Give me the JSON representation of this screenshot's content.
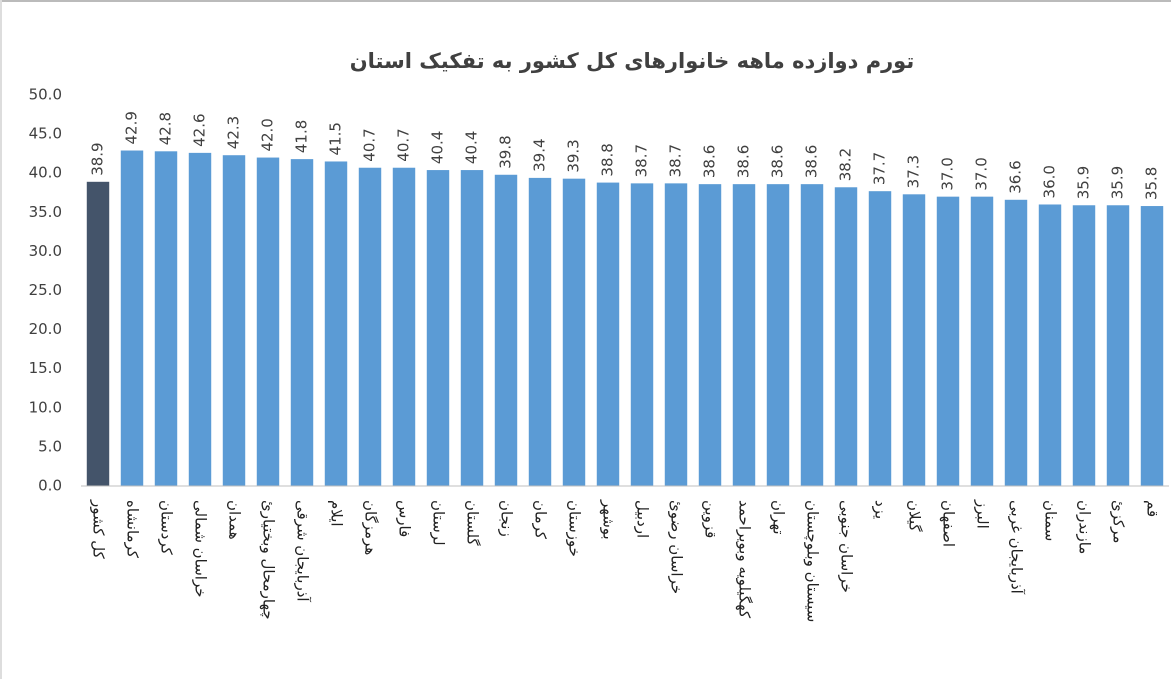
{
  "chart_data": {
    "type": "bar",
    "title": "تورم دوازده ماهه خانوارهای کل کشور به تفکیک استان",
    "categories": [
      "کل کشور",
      "کرمانشاه",
      "کردستان",
      "خراسان شمالی",
      "همدان",
      "چهارمحال وبختیاریٔ",
      "آذربایجان شرقی",
      "ایلام",
      "هرمزگان",
      "فارس",
      "لرستان",
      "گلستان",
      "زنجان",
      "کرمان",
      "خوزستان",
      "بوشهر",
      "اردبیل",
      "خراسان رضویٔ",
      "قزوین",
      "کهگیلویه وبویراحمد",
      "تهران",
      "سیستان وبلوچستان",
      "خراسان جنوبی",
      "یزد",
      "گیلان",
      "اصفهان",
      "البرز",
      "آذربایجان غربی",
      "سمنان",
      "مازندران",
      "مرکزیٔ",
      "قم"
    ],
    "values": [
      38.9,
      42.9,
      42.8,
      42.6,
      42.3,
      42,
      41.8,
      41.5,
      40.7,
      40.7,
      40.4,
      40.4,
      39.8,
      39.4,
      39.3,
      38.8,
      38.7,
      38.7,
      38.6,
      38.6,
      38.6,
      38.6,
      38.2,
      37.7,
      37.3,
      37,
      37,
      36.6,
      36,
      35.9,
      35.9,
      35.8
    ],
    "value_labels": [
      "38.9",
      "42.9",
      "42.8",
      "42.6",
      "42.3",
      "42.0",
      "41.8",
      "41.5",
      "40.7",
      "40.7",
      "40.4",
      "40.4",
      "39.8",
      "39.4",
      "39.3",
      "38.8",
      "38.7",
      "38.7",
      "38.6",
      "38.6",
      "38.6",
      "38.6",
      "38.2",
      "37.7",
      "37.3",
      "37.0",
      "37.0",
      "36.6",
      "36.0",
      "35.9",
      "35.9",
      "35.8"
    ],
    "colors": [
      "#44546a",
      "#5b9bd5",
      "#5b9bd5",
      "#5b9bd5",
      "#5b9bd5",
      "#5b9bd5",
      "#5b9bd5",
      "#5b9bd5",
      "#5b9bd5",
      "#5b9bd5",
      "#5b9bd5",
      "#5b9bd5",
      "#5b9bd5",
      "#5b9bd5",
      "#5b9bd5",
      "#5b9bd5",
      "#5b9bd5",
      "#5b9bd5",
      "#5b9bd5",
      "#5b9bd5",
      "#5b9bd5",
      "#5b9bd5",
      "#5b9bd5",
      "#5b9bd5",
      "#5b9bd5",
      "#5b9bd5",
      "#5b9bd5",
      "#5b9bd5",
      "#5b9bd5",
      "#5b9bd5",
      "#5b9bd5",
      "#5b9bd5"
    ],
    "ylim": [
      0,
      50
    ],
    "yticks": [
      {
        "value": 0,
        "label": "0.0"
      },
      {
        "value": 5,
        "label": "5.0"
      },
      {
        "value": 10,
        "label": "10.0"
      },
      {
        "value": 15,
        "label": "15.0"
      },
      {
        "value": 20,
        "label": "20.0"
      },
      {
        "value": 25,
        "label": "25.0"
      },
      {
        "value": 30,
        "label": "30.0"
      },
      {
        "value": 35,
        "label": "35.0"
      },
      {
        "value": 40,
        "label": "40.0"
      },
      {
        "value": 45,
        "label": "45.0"
      },
      {
        "value": 50,
        "label": "50.0"
      }
    ],
    "grid": false
  }
}
